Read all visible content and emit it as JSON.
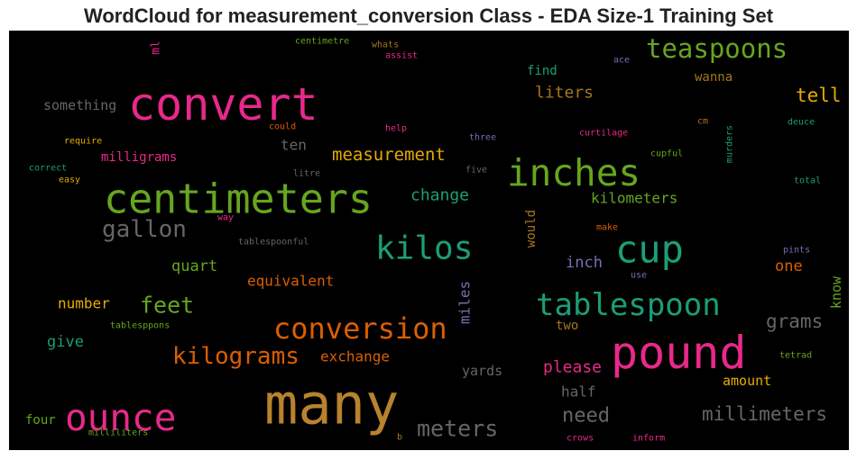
{
  "chart_data": {
    "type": "wordcloud",
    "title": "WordCloud for measurement_conversion Class - EDA Size-1 Training Set",
    "background": "#000000",
    "words": [
      {
        "text": "many",
        "color": "#b8822e"
      },
      {
        "text": "convert",
        "color": "#e7298a"
      },
      {
        "text": "centimeters",
        "color": "#66a61e"
      },
      {
        "text": "pound",
        "color": "#e7298a"
      },
      {
        "text": "cup",
        "color": "#1b9e77"
      },
      {
        "text": "inches",
        "color": "#66a61e"
      },
      {
        "text": "ounce",
        "color": "#e7298a"
      },
      {
        "text": "kilos",
        "color": "#1b9e77"
      },
      {
        "text": "tablespoon",
        "color": "#1b9e77"
      },
      {
        "text": "conversion",
        "color": "#d95f02"
      },
      {
        "text": "teaspoons",
        "color": "#66a61e"
      },
      {
        "text": "gallon",
        "color": "#666666"
      },
      {
        "text": "kilograms",
        "color": "#d95f02"
      },
      {
        "text": "meters",
        "color": "#666666"
      },
      {
        "text": "feet",
        "color": "#66a61e"
      },
      {
        "text": "millimeters",
        "color": "#666666"
      },
      {
        "text": "need",
        "color": "#666666"
      },
      {
        "text": "grams",
        "color": "#666666"
      },
      {
        "text": "tell",
        "color": "#e6ab02"
      },
      {
        "text": "measurement",
        "color": "#e6ab02"
      },
      {
        "text": "liters",
        "color": "#a6761d"
      },
      {
        "text": "please",
        "color": "#e7298a"
      },
      {
        "text": "change",
        "color": "#1b9e77"
      },
      {
        "text": "kilometers",
        "color": "#66a61e"
      },
      {
        "text": "equivalent",
        "color": "#d95f02"
      },
      {
        "text": "quart",
        "color": "#66a61e"
      },
      {
        "text": "inch",
        "color": "#7570b3"
      },
      {
        "text": "one",
        "color": "#d95f02"
      },
      {
        "text": "number",
        "color": "#e6ab02"
      },
      {
        "text": "give",
        "color": "#1b9e77"
      },
      {
        "text": "exchange",
        "color": "#d95f02"
      },
      {
        "text": "miles",
        "color": "#7570b3"
      },
      {
        "text": "know",
        "color": "#66a61e"
      },
      {
        "text": "yards",
        "color": "#666666"
      },
      {
        "text": "half",
        "color": "#666666"
      },
      {
        "text": "amount",
        "color": "#e6ab02"
      },
      {
        "text": "something",
        "color": "#666666"
      },
      {
        "text": "milligrams",
        "color": "#e7298a"
      },
      {
        "text": "ten",
        "color": "#666666"
      },
      {
        "text": "find",
        "color": "#1b9e77"
      },
      {
        "text": "wanna",
        "color": "#a6761d"
      },
      {
        "text": "two",
        "color": "#a6761d"
      },
      {
        "text": "four",
        "color": "#66a61e"
      },
      {
        "text": "would",
        "color": "#a6761d"
      },
      {
        "text": "ml",
        "color": "#e7298a"
      },
      {
        "text": "centimetre",
        "color": "#66a61e"
      },
      {
        "text": "whats",
        "color": "#a6761d"
      },
      {
        "text": "assist",
        "color": "#e7298a"
      },
      {
        "text": "ace",
        "color": "#7570b3"
      },
      {
        "text": "could",
        "color": "#d95f02"
      },
      {
        "text": "help",
        "color": "#e7298a"
      },
      {
        "text": "cm",
        "color": "#a6761d"
      },
      {
        "text": "deuce",
        "color": "#1b9e77"
      },
      {
        "text": "three",
        "color": "#7570b3"
      },
      {
        "text": "curtilage",
        "color": "#e7298a"
      },
      {
        "text": "murders",
        "color": "#1b9e77"
      },
      {
        "text": "require",
        "color": "#e6ab02"
      },
      {
        "text": "correct",
        "color": "#1b9e77"
      },
      {
        "text": "litre",
        "color": "#666666"
      },
      {
        "text": "five",
        "color": "#666666"
      },
      {
        "text": "cupful",
        "color": "#66a61e"
      },
      {
        "text": "easy",
        "color": "#e6ab02"
      },
      {
        "text": "total",
        "color": "#1b9e77"
      },
      {
        "text": "way",
        "color": "#e7298a"
      },
      {
        "text": "make",
        "color": "#d95f02"
      },
      {
        "text": "tablespoonful",
        "color": "#666666"
      },
      {
        "text": "pints",
        "color": "#7570b3"
      },
      {
        "text": "use",
        "color": "#7570b3"
      },
      {
        "text": "tablesppons",
        "color": "#66a61e"
      },
      {
        "text": "tetrad",
        "color": "#66a61e"
      },
      {
        "text": "milliliters",
        "color": "#66a61e"
      },
      {
        "text": "b",
        "color": "#a6761d"
      },
      {
        "text": "crows",
        "color": "#e7298a"
      },
      {
        "text": "inform",
        "color": "#e7298a"
      }
    ]
  }
}
